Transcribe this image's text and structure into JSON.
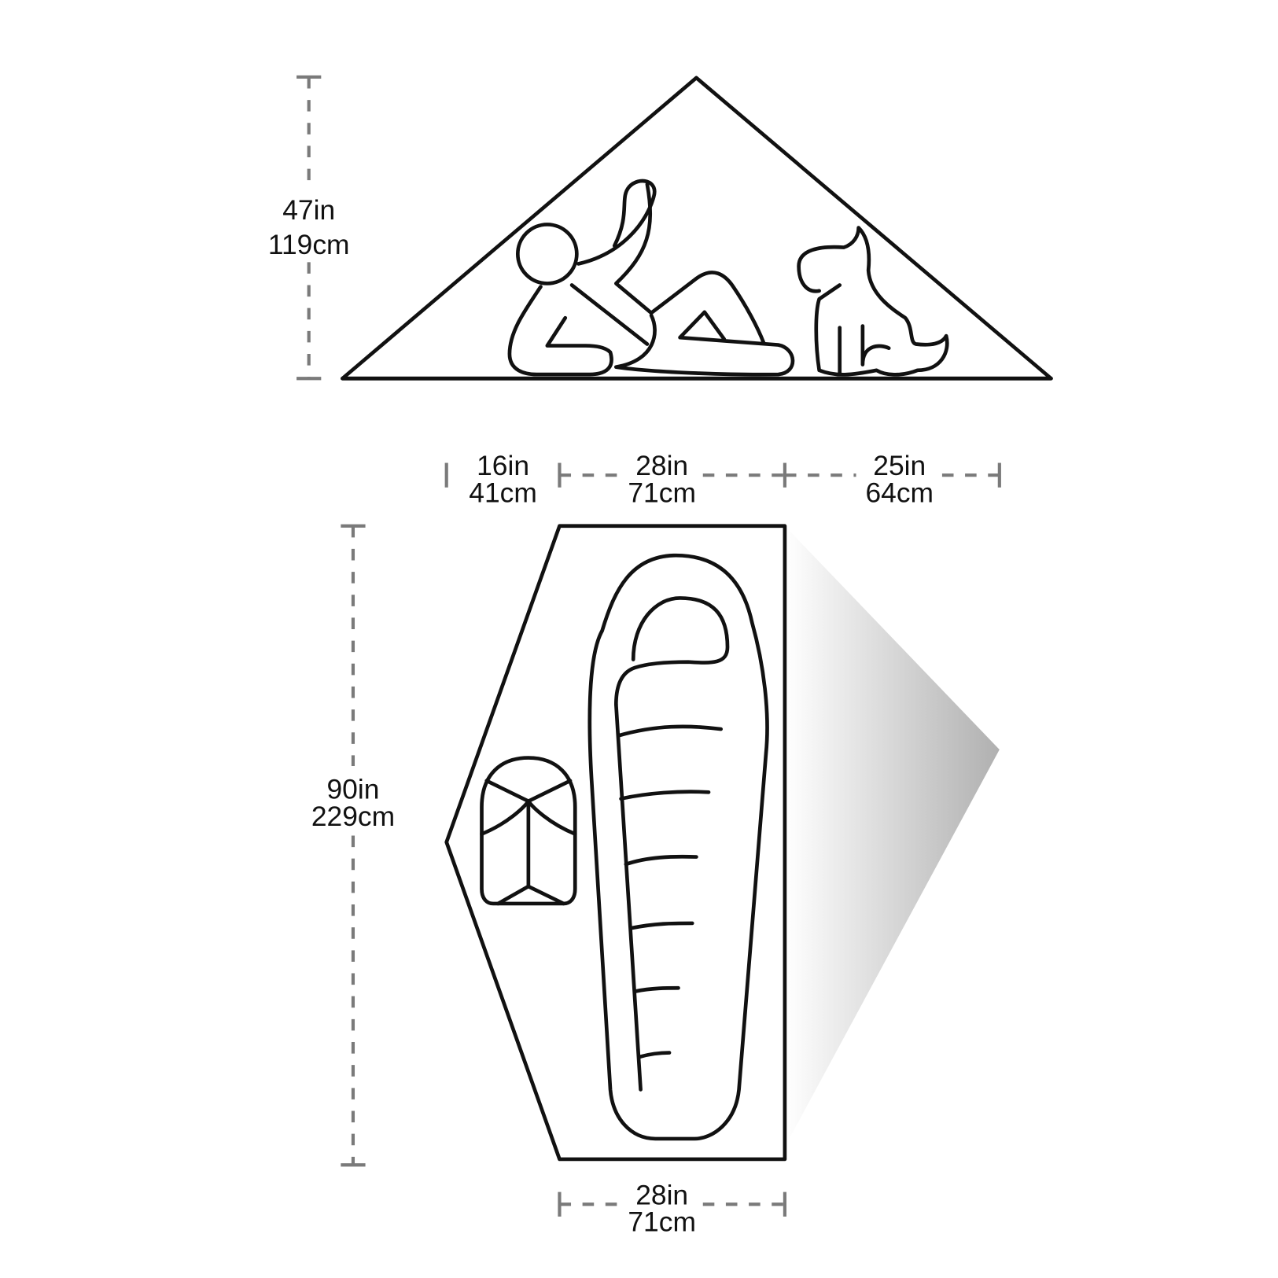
{
  "diagram": {
    "side_view": {
      "height": {
        "in": "47in",
        "cm": "119cm"
      }
    },
    "floor_plan": {
      "widths_top": [
        {
          "in": "16in",
          "cm": "41cm"
        },
        {
          "in": "28in",
          "cm": "71cm"
        },
        {
          "in": "25in",
          "cm": "64cm"
        }
      ],
      "length": {
        "in": "90in",
        "cm": "229cm"
      },
      "width_bottom": {
        "in": "28in",
        "cm": "71cm"
      }
    },
    "colors": {
      "line": "#111111",
      "dimension_line": "#7a7a7a",
      "vestibule_shade": "#b0b0b0"
    }
  }
}
